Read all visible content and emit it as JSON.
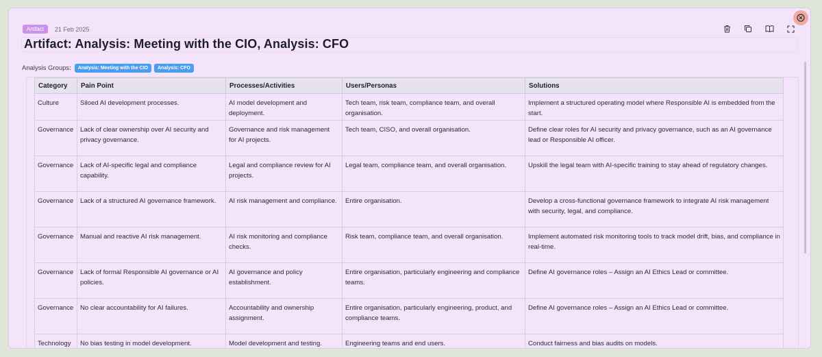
{
  "header": {
    "badge": "Artifact",
    "date": "21 Feb 2025",
    "title": "Artifact: Analysis: Meeting with the CIO, Analysis: CFO"
  },
  "toolbar": {
    "icons": [
      "trash-icon",
      "copy-icon",
      "book-icon",
      "expand-icon"
    ],
    "close_icon": "close-circle-icon"
  },
  "groups": {
    "label": "Analysis Groups:",
    "chips": [
      "Analysis: Meeting with the CIO",
      "Analysis: CFO"
    ]
  },
  "table": {
    "headers": [
      "Category",
      "Pain Point",
      "Processes/Activities",
      "Users/Personas",
      "Solutions"
    ],
    "rows": [
      [
        "Culture",
        "Siloed AI development processes.",
        "AI model development and deployment.",
        "Tech team, risk team, compliance team, and overall organisation.",
        "Implement a structured operating model where Responsible AI is embedded from the start."
      ],
      [
        "Governance",
        "Lack of clear ownership over AI security and privacy governance.",
        "Governance and risk management for AI projects.",
        "Tech team, CISO, and overall organisation.",
        "Define clear roles for AI security and privacy governance, such as an AI governance lead or Responsible AI officer."
      ],
      [
        "Governance",
        "Lack of AI-specific legal and compliance capability.",
        "Legal and compliance review for AI projects.",
        "Legal team, compliance team, and overall organisation.",
        "Upskill the legal team with AI-specific training to stay ahead of regulatory changes."
      ],
      [
        "Governance",
        "Lack of a structured AI governance framework.",
        "AI risk management and compliance.",
        "Entire organisation.",
        "Develop a cross-functional governance framework to integrate AI risk management with security, legal, and compliance."
      ],
      [
        "Governance",
        "Manual and reactive AI risk management.",
        "AI risk monitoring and compliance checks.",
        "Risk team, compliance team, and overall organisation.",
        "Implement automated risk monitoring tools to track model drift, bias, and compliance in real-time."
      ],
      [
        "Governance",
        "Lack of formal Responsible AI governance or AI policies.",
        "AI governance and policy establishment.",
        "Entire organisation, particularly engineering and compliance teams.",
        "Define AI governance roles – Assign an AI Ethics Lead or committee."
      ],
      [
        "Governance",
        "No clear accountability for AI failures.",
        "Accountability and ownership assignment.",
        "Entire organisation, particularly engineering, product, and compliance teams.",
        "Define AI governance roles – Assign an AI Ethics Lead or committee."
      ],
      [
        "Technology",
        "No bias testing in model development.",
        "Model development and testing.",
        "Engineering teams and end users.",
        "Conduct fairness and bias audits on models."
      ]
    ]
  }
}
